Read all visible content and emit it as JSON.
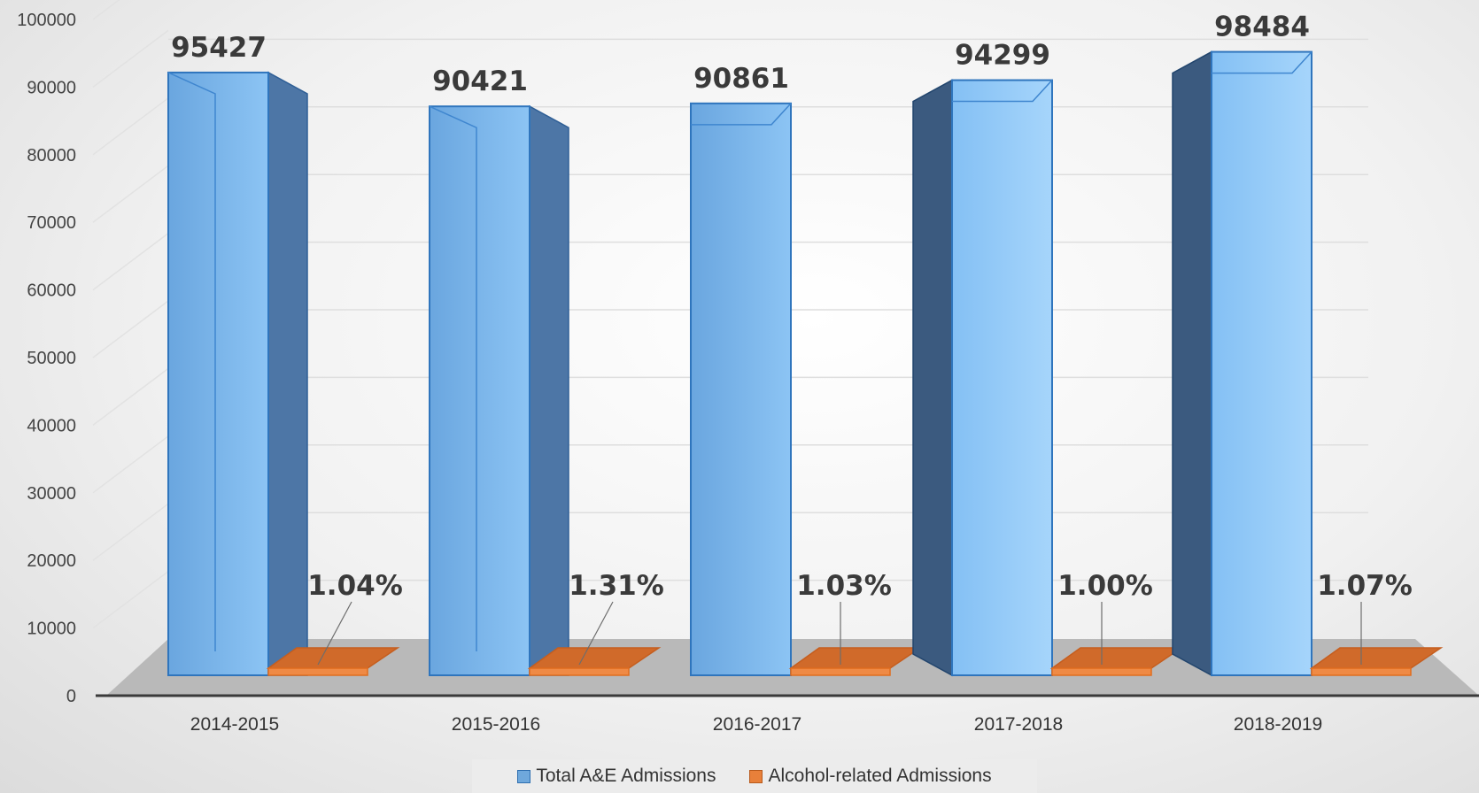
{
  "chart_data": {
    "type": "bar",
    "categories": [
      "2014-2015",
      "2015-2016",
      "2016-2017",
      "2017-2018",
      "2018-2019"
    ],
    "series": [
      {
        "name": "Total A&E Admissions",
        "values": [
          95427,
          90421,
          90861,
          94299,
          98484
        ],
        "labels": [
          "95427",
          "90421",
          "90861",
          "94299",
          "98484"
        ],
        "color": "#6fa8dc"
      },
      {
        "name": "Alcohol-related Admissions",
        "values": [
          1.04,
          1.31,
          1.03,
          1.0,
          1.07
        ],
        "labels": [
          "1.04%",
          "1.31%",
          "1.03%",
          "1.00%",
          "1.07%"
        ],
        "color": "#e8803a"
      }
    ],
    "yticks": [
      "0",
      "10000",
      "20000",
      "30000",
      "40000",
      "50000",
      "60000",
      "70000",
      "80000",
      "90000",
      "100000"
    ],
    "ylim": [
      0,
      100000
    ],
    "grid": true,
    "legend": "bottom"
  }
}
